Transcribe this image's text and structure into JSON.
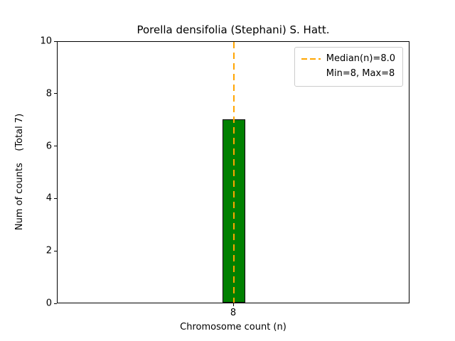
{
  "chart_data": {
    "type": "bar",
    "title": "Porella densifolia (Stephani) S. Hatt.",
    "xlabel": "Chromosome count (n)",
    "ylabel": "Num of counts    (Total 7)",
    "categories": [
      "8"
    ],
    "values": [
      7
    ],
    "ylim": [
      0,
      10
    ],
    "yticks": [
      0,
      2,
      4,
      6,
      8,
      10
    ],
    "grid": false,
    "bar_color": "#008000",
    "bar_edge_color": "#000000",
    "median_line": {
      "value": 8.0,
      "color": "#FFA500",
      "style": "dashed"
    },
    "legend": {
      "position": "upper right",
      "entries": [
        {
          "label": "Median(n)=8.0",
          "symbol": "dashed-line",
          "color": "#FFA500"
        },
        {
          "label": "Min=8, Max=8",
          "symbol": "none",
          "color": ""
        }
      ]
    }
  }
}
